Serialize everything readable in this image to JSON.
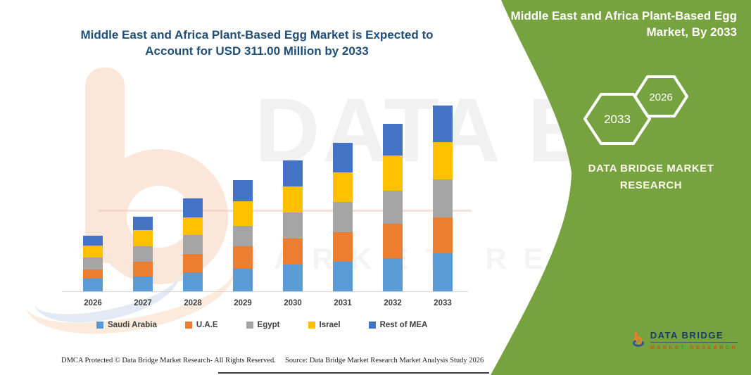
{
  "page": {
    "chart_title_lines": {
      "0": "Middle East and Africa Plant-Based Egg Market is Expected to",
      "1": "Account for USD 311.00 Million by 2033"
    },
    "panel": {
      "bg_color": "#76A23F",
      "title_lines": {
        "0": "Middle East and Africa Plant-Based Egg",
        "1": "Market, By 2033"
      },
      "hexagon_left": "2033",
      "hexagon_right": "2026",
      "brand_line1": "DATA BRIDGE MARKET",
      "brand_line2": "RESEARCH",
      "logo_name": "DATA BRIDGE",
      "logo_sub": "MARKET RESEARCH"
    },
    "watermark": {
      "line1": "DATA BRIDGE",
      "line2": "MARKET RESEARCH"
    },
    "footer": {
      "left": "DMCA Protected © Data Bridge Market Research-  All Rights Reserved.",
      "right": "Source: Data Bridge Market Research  Market Analysis Study 2026"
    }
  },
  "chart_data": {
    "type": "bar",
    "stacked": true,
    "title": "Middle East and Africa Plant-Based Egg Market is Expected to Account for USD 311.00 Million by 2033",
    "unit": "USD Million",
    "categories": [
      "2026",
      "2027",
      "2028",
      "2029",
      "2030",
      "2031",
      "2032",
      "2033"
    ],
    "series": [
      {
        "name": "Saudi Arabia",
        "color": "#5B9BD5",
        "values": [
          21,
          25,
          32,
          38,
          45,
          50,
          56,
          64
        ]
      },
      {
        "name": "U.A.E",
        "color": "#ED7D31",
        "values": [
          16,
          24,
          31,
          37,
          43,
          49,
          57,
          60
        ]
      },
      {
        "name": "Egypt",
        "color": "#A5A5A5",
        "values": [
          20,
          27,
          31,
          35,
          44,
          51,
          55,
          63
        ]
      },
      {
        "name": "Israel",
        "color": "#FFC000",
        "values": [
          20,
          27,
          30,
          41,
          44,
          49,
          59,
          63
        ]
      },
      {
        "name": "Rest of MEA",
        "color": "#4472C4",
        "values": [
          16,
          22,
          31,
          35,
          43,
          50,
          53,
          61
        ]
      }
    ],
    "totals": [
      93,
      125,
      155,
      186,
      219,
      249,
      280,
      311
    ],
    "ylim": [
      0,
      320
    ],
    "y_axis_visible": false,
    "gridlines": false,
    "legend_position": "bottom",
    "xlabel": "",
    "ylabel": ""
  }
}
